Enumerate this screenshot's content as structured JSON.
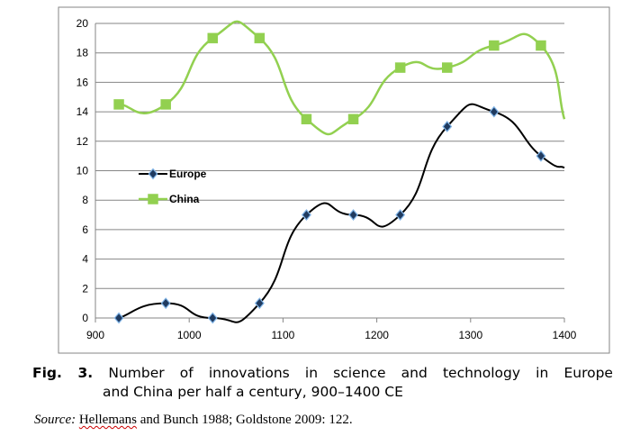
{
  "chart_data": {
    "type": "line",
    "title": "",
    "xlabel": "",
    "ylabel": "",
    "xlim": [
      900,
      1400
    ],
    "ylim": [
      0,
      20
    ],
    "x_ticks": [
      "900",
      "1000",
      "1100",
      "1200",
      "1300",
      "1400"
    ],
    "y_ticks": [
      "0",
      "2",
      "4",
      "6",
      "8",
      "10",
      "12",
      "14",
      "16",
      "18",
      "20"
    ],
    "grid": "horizontal",
    "legend_position": "left-center",
    "series": [
      {
        "name": "Europe",
        "color": "#000000",
        "marker": "diamond",
        "marker_fill": "#1f3a5f",
        "x": [
          925,
          975,
          1025,
          1075,
          1125,
          1175,
          1225,
          1275,
          1325,
          1375
        ],
        "y": [
          0,
          1,
          0,
          1,
          7,
          7,
          7,
          13,
          14,
          11
        ],
        "line_end": {
          "x": 1400,
          "y": 10.2
        }
      },
      {
        "name": "China",
        "color": "#92d050",
        "marker": "square",
        "marker_fill": "#92d050",
        "x": [
          925,
          975,
          1025,
          1075,
          1125,
          1175,
          1225,
          1275,
          1325,
          1375
        ],
        "y": [
          14.5,
          14.5,
          19,
          19,
          13.5,
          13.5,
          17,
          17,
          18.5,
          18.5
        ],
        "line_end": {
          "x": 1400,
          "y": 13.5
        }
      }
    ]
  },
  "caption": {
    "fig_label": "Fig. 3.",
    "line1": "Number of innovations in science and technology in Europe",
    "line2": "and China per half a century, 900–1400 CE"
  },
  "source": {
    "label": "Source:",
    "underlined": "Hellemans",
    "rest": " and Bunch 1988; Goldstone 2009: 122."
  }
}
